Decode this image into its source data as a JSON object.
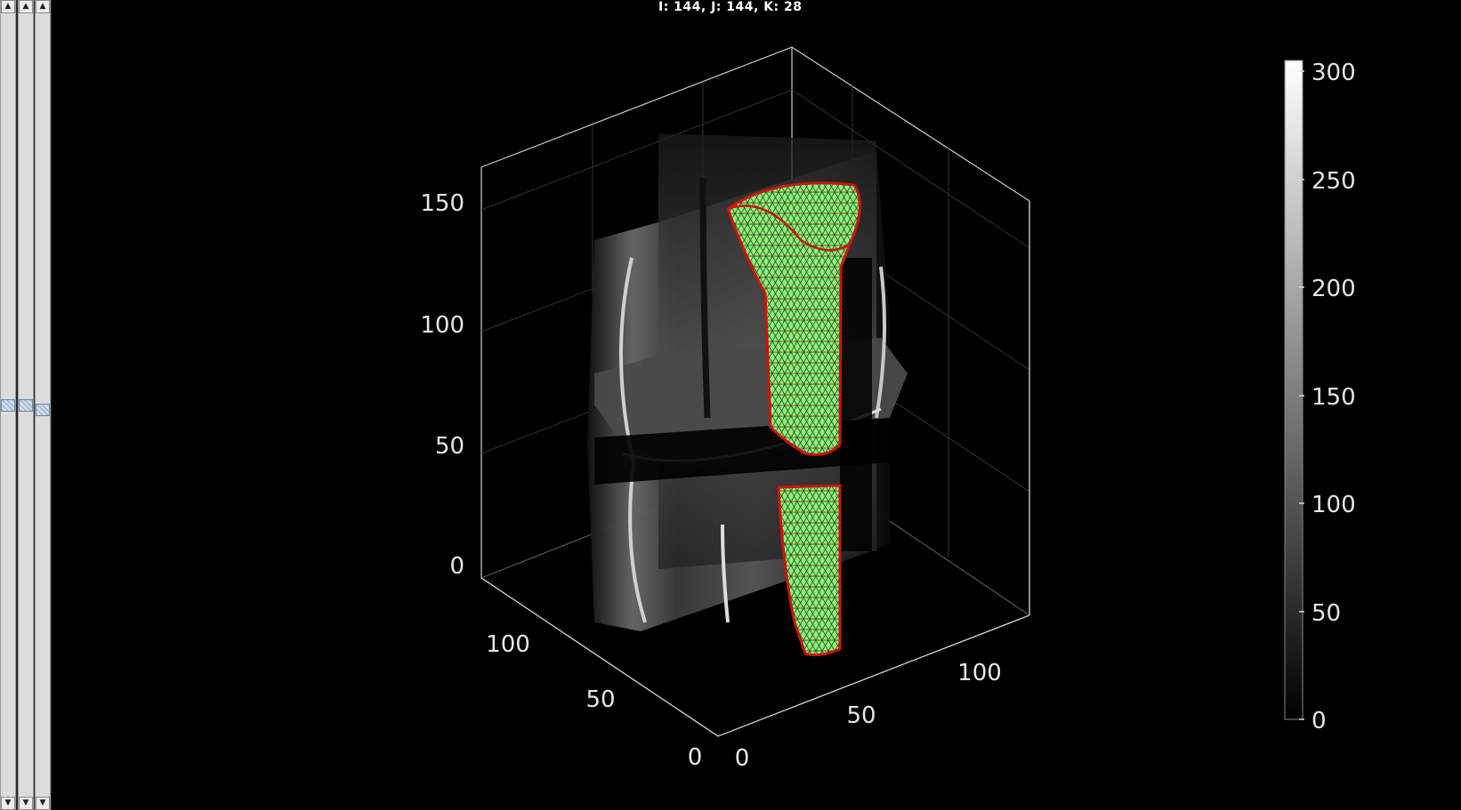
{
  "window": {
    "title": "I: 144, J:  144, K: 28"
  },
  "sliders": [
    {
      "name": "slice-i",
      "value": 0.5
    },
    {
      "name": "slice-j",
      "value": 0.5
    },
    {
      "name": "slice-k",
      "value": 0.51
    }
  ],
  "axes": {
    "z_ticks": [
      "0",
      "50",
      "100",
      "150"
    ],
    "y_ticks": [
      "0",
      "50",
      "100"
    ],
    "x_ticks": [
      "0",
      "50",
      "100"
    ]
  },
  "colorbar": {
    "ticks": [
      "0",
      "50",
      "100",
      "150",
      "200",
      "250",
      "300"
    ],
    "range": [
      0,
      300
    ]
  },
  "colors": {
    "background": "#000000",
    "mesh_fill": "#8ef07a",
    "mesh_edge": "#d01010",
    "axis_line": "#cfcfcf"
  }
}
